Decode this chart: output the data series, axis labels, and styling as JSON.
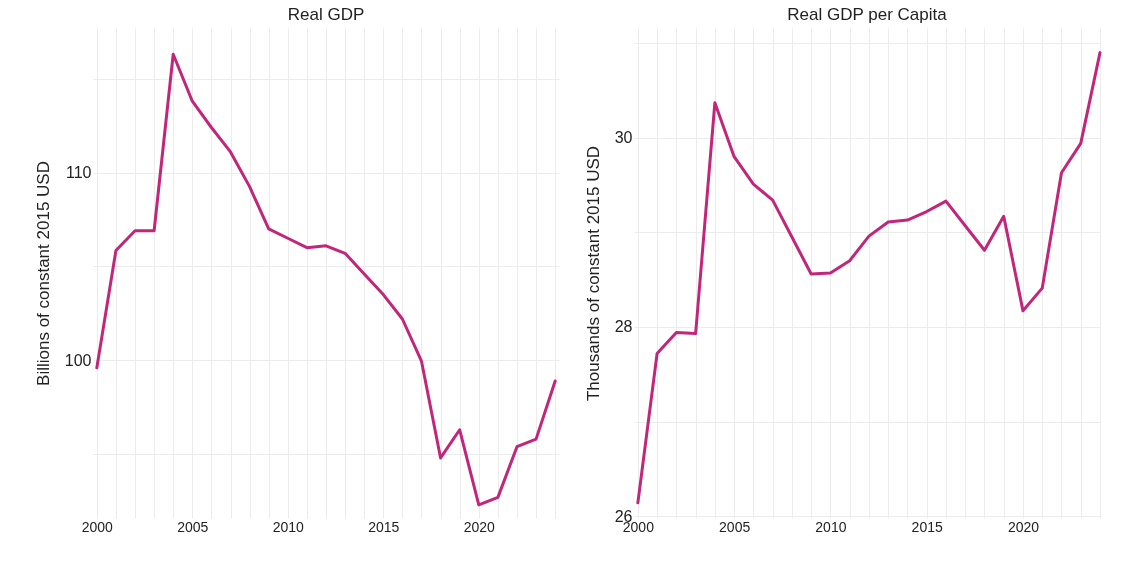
{
  "chart_data": [
    {
      "type": "line",
      "title": "Real GDP",
      "ylabel": "Billions of constant 2015 USD",
      "x": [
        2000,
        2001,
        2002,
        2003,
        2004,
        2005,
        2006,
        2007,
        2008,
        2009,
        2010,
        2011,
        2012,
        2013,
        2014,
        2015,
        2016,
        2017,
        2018,
        2019,
        2020,
        2021,
        2022,
        2023,
        2024
      ],
      "series": [
        {
          "color": "#c2267a",
          "values": [
            99.6,
            105.85,
            106.9,
            106.9,
            116.3,
            113.8,
            112.4,
            111.1,
            109.25,
            107.0,
            106.5,
            106.0,
            106.1,
            105.7,
            104.6,
            103.5,
            102.2,
            99.95,
            94.8,
            96.3,
            92.3,
            92.7,
            95.4,
            95.8,
            98.9
          ]
        }
      ],
      "xlim": [
        1999.8,
        2024.2
      ],
      "ylim": [
        91.6,
        117.7
      ],
      "xticks": [
        2000,
        {
          "value": 2001,
          "label": null
        },
        {
          "value": 2002,
          "label": null
        },
        {
          "value": 2003,
          "label": null
        },
        {
          "value": 2004,
          "label": null
        },
        2005,
        {
          "value": 2006,
          "label": null
        },
        {
          "value": 2007,
          "label": null
        },
        {
          "value": 2008,
          "label": null
        },
        {
          "value": 2009,
          "label": null
        },
        2010,
        {
          "value": 2011,
          "label": null
        },
        {
          "value": 2012,
          "label": null
        },
        {
          "value": 2013,
          "label": null
        },
        {
          "value": 2014,
          "label": null
        },
        2015,
        {
          "value": 2016,
          "label": null
        },
        {
          "value": 2017,
          "label": null
        },
        {
          "value": 2018,
          "label": null
        },
        {
          "value": 2019,
          "label": null
        },
        2020,
        {
          "value": 2021,
          "label": null
        },
        {
          "value": 2022,
          "label": null
        },
        {
          "value": 2023,
          "label": null
        },
        {
          "value": 2024,
          "label": null
        }
      ],
      "yticks": [
        {
          "value": 95,
          "label": null
        },
        100,
        {
          "value": 105,
          "label": null
        },
        110,
        {
          "value": 115,
          "label": null
        }
      ],
      "grid": true
    },
    {
      "type": "line",
      "title": "Real GDP per Capita",
      "ylabel": "Thousands of constant 2015 USD",
      "x": [
        2000,
        2001,
        2002,
        2003,
        2004,
        2005,
        2006,
        2007,
        2008,
        2009,
        2010,
        2011,
        2012,
        2013,
        2014,
        2015,
        2016,
        2017,
        2018,
        2019,
        2020,
        2021,
        2022,
        2023,
        2024
      ],
      "series": [
        {
          "color": "#c2267a",
          "values": [
            26.14,
            27.72,
            27.94,
            27.93,
            30.37,
            29.8,
            29.51,
            29.34,
            28.95,
            28.56,
            28.57,
            28.7,
            28.96,
            29.11,
            29.13,
            29.22,
            29.33,
            29.07,
            28.81,
            29.17,
            28.17,
            28.41,
            29.63,
            29.94,
            30.9
          ]
        }
      ],
      "xlim": [
        1999.8,
        2024.0
      ],
      "ylim": [
        25.98,
        31.16
      ],
      "xticks": [
        2000,
        {
          "value": 2001,
          "label": null
        },
        {
          "value": 2002,
          "label": null
        },
        {
          "value": 2003,
          "label": null
        },
        {
          "value": 2004,
          "label": null
        },
        2005,
        {
          "value": 2006,
          "label": null
        },
        {
          "value": 2007,
          "label": null
        },
        {
          "value": 2008,
          "label": null
        },
        {
          "value": 2009,
          "label": null
        },
        2010,
        {
          "value": 2011,
          "label": null
        },
        {
          "value": 2012,
          "label": null
        },
        {
          "value": 2013,
          "label": null
        },
        {
          "value": 2014,
          "label": null
        },
        2015,
        {
          "value": 2016,
          "label": null
        },
        {
          "value": 2017,
          "label": null
        },
        {
          "value": 2018,
          "label": null
        },
        {
          "value": 2019,
          "label": null
        },
        2020,
        {
          "value": 2021,
          "label": null
        },
        {
          "value": 2022,
          "label": null
        },
        {
          "value": 2023,
          "label": null
        },
        {
          "value": 2024,
          "label": null
        }
      ],
      "yticks": [
        26,
        {
          "value": 27,
          "label": null
        },
        28,
        {
          "value": 29,
          "label": null
        },
        30,
        {
          "value": 31,
          "label": null
        }
      ],
      "grid": true
    }
  ]
}
